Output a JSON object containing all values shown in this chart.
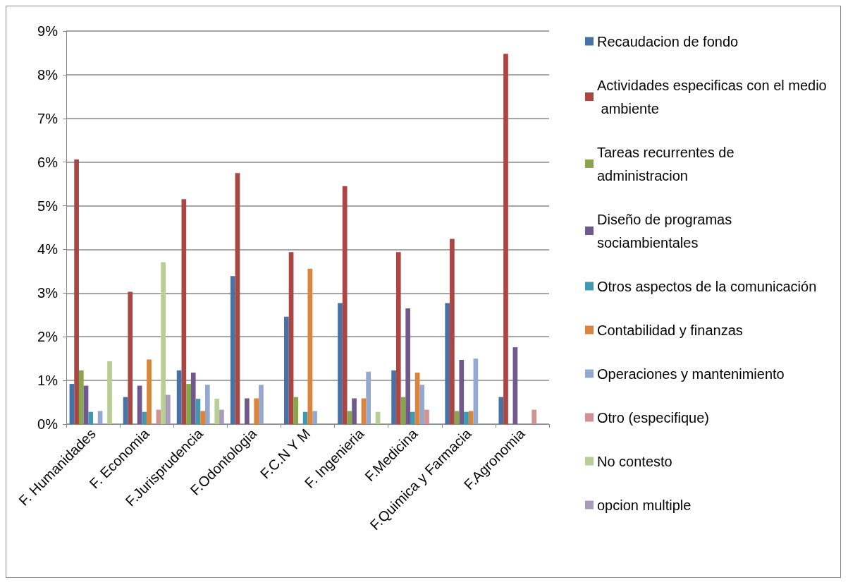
{
  "chart_data": {
    "type": "bar",
    "categories": [
      "F. Humanidades",
      "F. Economia",
      "F.Jurisprudencia",
      "F.Odontologia",
      "F.C.N Y M",
      "F. Ingenieria",
      "F.Medicina",
      "F.Quimica y Farmacia",
      "F.Agronomia"
    ],
    "series": [
      {
        "name": "Recaudacion de fondo",
        "color": "#4572a7",
        "values": [
          0.92,
          0.62,
          1.23,
          3.39,
          2.46,
          2.77,
          1.23,
          2.77,
          0.62
        ]
      },
      {
        "name": "Actividades especificas con el medio ambiente",
        "color": "#aa4643",
        "values": [
          6.06,
          3.03,
          5.15,
          5.75,
          3.94,
          5.45,
          3.94,
          4.24,
          8.48
        ]
      },
      {
        "name": "Tareas recurrentes de administracion",
        "color": "#89a54e",
        "values": [
          1.23,
          0,
          0.92,
          0,
          0.62,
          0.3,
          0.62,
          0.3,
          0
        ]
      },
      {
        "name": "Diseño de programas sociambientales",
        "color": "#71588f",
        "values": [
          0.88,
          0.88,
          1.18,
          0.59,
          0,
          0.59,
          2.65,
          1.47,
          1.76
        ]
      },
      {
        "name": "Otros aspectos de la comunicación",
        "color": "#4198af",
        "values": [
          0.28,
          0.28,
          0.58,
          0,
          0.28,
          0,
          0.28,
          0.28,
          0
        ]
      },
      {
        "name": "Contabilidad y finanzas",
        "color": "#db843d",
        "values": [
          0,
          1.48,
          0.3,
          0.59,
          3.56,
          0.59,
          1.18,
          0.3,
          0
        ]
      },
      {
        "name": "Operaciones y mantenimiento",
        "color": "#93a9cf",
        "values": [
          0.3,
          0,
          0.9,
          0.9,
          0.3,
          1.2,
          0.9,
          1.5,
          0
        ]
      },
      {
        "name": "Otro (especifique)",
        "color": "#d19392",
        "values": [
          0,
          0.33,
          0,
          0,
          0,
          0,
          0.33,
          0,
          0.33
        ]
      },
      {
        "name": "No contesto",
        "color": "#b9cd96",
        "values": [
          1.44,
          3.71,
          0.58,
          0,
          0,
          0.28,
          0,
          0,
          0
        ]
      },
      {
        "name": "opcion multiple",
        "color": "#a99bbd",
        "values": [
          0,
          0.67,
          0.33,
          0,
          0,
          0,
          0,
          0,
          0
        ]
      }
    ],
    "ylim": [
      0,
      9
    ],
    "yticks": [
      {
        "value": 0,
        "label": "0%"
      },
      {
        "value": 1,
        "label": "1%"
      },
      {
        "value": 2,
        "label": "2%"
      },
      {
        "value": 3,
        "label": "3%"
      },
      {
        "value": 4,
        "label": "4%"
      },
      {
        "value": 5,
        "label": "5%"
      },
      {
        "value": 6,
        "label": "6%"
      },
      {
        "value": 7,
        "label": "7%"
      },
      {
        "value": 8,
        "label": "8%"
      },
      {
        "value": 9,
        "label": "9%"
      }
    ],
    "grid": "y",
    "legend": "right"
  }
}
